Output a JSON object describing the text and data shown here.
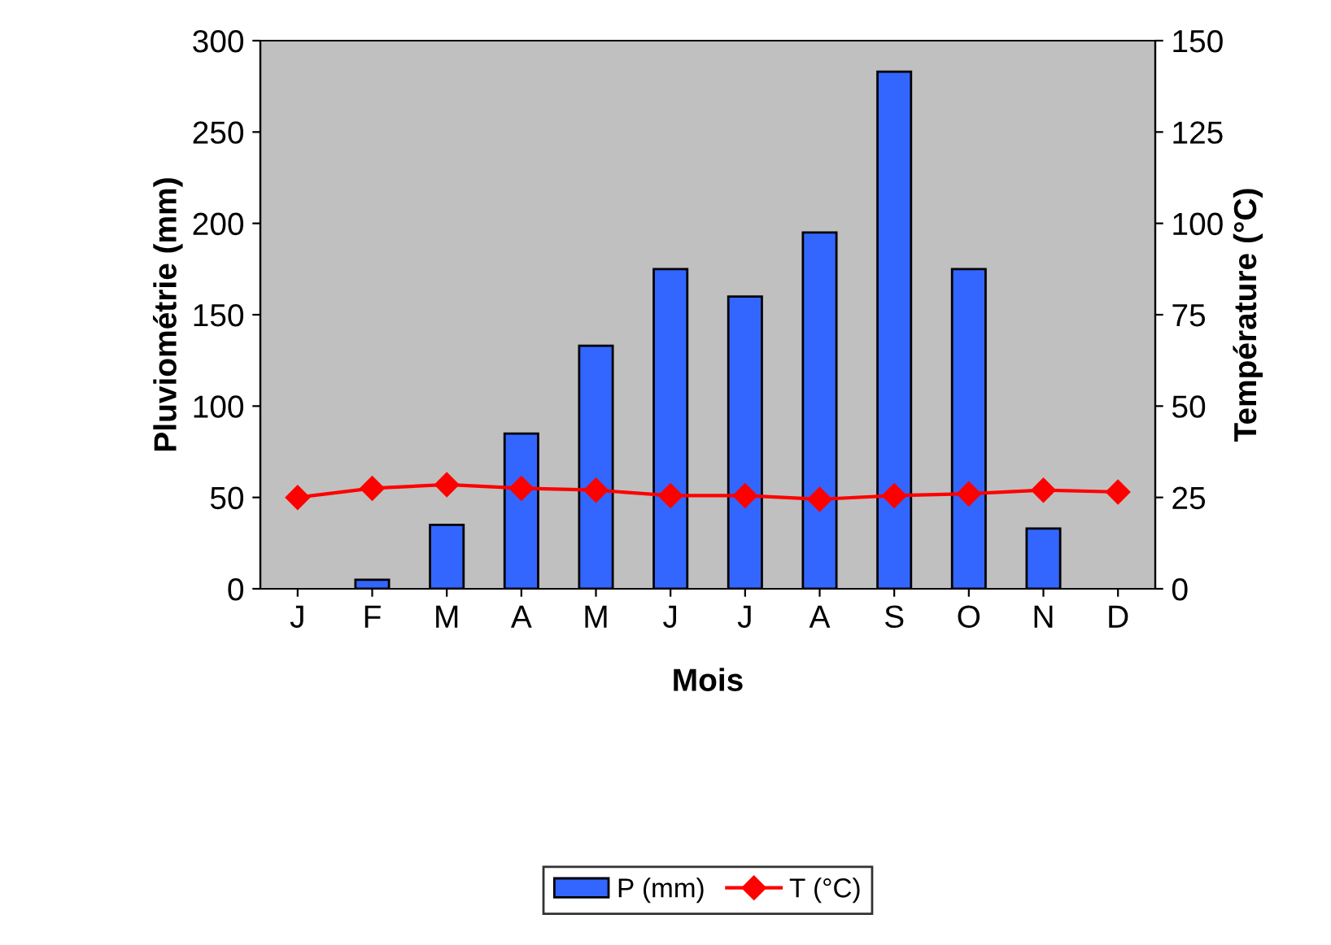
{
  "chart_data": {
    "type": "bar",
    "xlabel": "Mois",
    "ylabel": "Pluviométrie (mm)",
    "y2label": "Température (°C)",
    "categories": [
      "J",
      "F",
      "M",
      "A",
      "M",
      "J",
      "J",
      "A",
      "S",
      "O",
      "N",
      "D"
    ],
    "series": [
      {
        "name": "P (mm)",
        "color": "#3366ff",
        "values": [
          null,
          5,
          35,
          85,
          133,
          175,
          160,
          195,
          283,
          175,
          33,
          null
        ]
      },
      {
        "name": "T (°C)",
        "type": "line",
        "axis": "y2",
        "color": "#ff0000",
        "marker": "diamond",
        "values": [
          25,
          27.5,
          28.5,
          27.5,
          27,
          25.5,
          25.5,
          24.5,
          25.5,
          26,
          27,
          26.5
        ]
      }
    ],
    "ylim": [
      0,
      300
    ],
    "yticks": [
      0,
      50,
      100,
      150,
      200,
      250,
      300
    ],
    "y2lim": [
      0,
      150
    ],
    "y2ticks": [
      0,
      25,
      50,
      75,
      100,
      125,
      150
    ],
    "grid": false,
    "legend": "bottom"
  }
}
